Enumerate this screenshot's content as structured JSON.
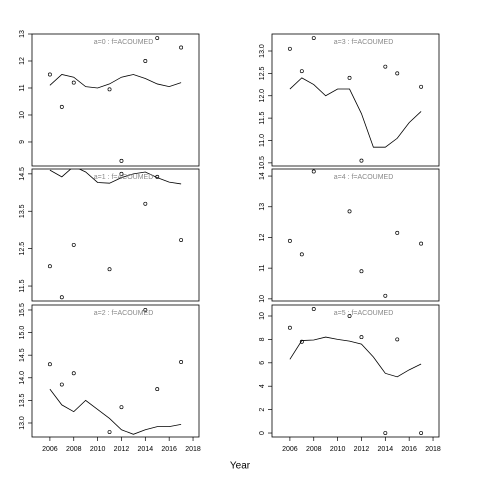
{
  "x_label": "Year",
  "chart_data": [
    {
      "type": "scatter",
      "title": "a=0 : f=ACOUMED",
      "xlim": [
        2004.5,
        2018.5
      ],
      "ylim": [
        8.11,
        13.0
      ],
      "yticks": [
        9,
        10,
        11,
        12,
        13
      ],
      "points": {
        "x": [
          2006,
          2007,
          2008,
          2011,
          2012,
          2014,
          2015,
          2017
        ],
        "values": [
          11.5,
          10.3,
          11.2,
          10.95,
          8.3,
          12.0,
          12.85,
          12.5
        ]
      },
      "line": {
        "x": [
          2006,
          2007,
          2008,
          2009,
          2010,
          2011,
          2012,
          2013,
          2014,
          2015,
          2016,
          2017
        ],
        "values": [
          11.1,
          11.5,
          11.4,
          11.05,
          11.0,
          11.15,
          11.4,
          11.5,
          11.35,
          11.15,
          11.05,
          11.2
        ]
      }
    },
    {
      "type": "scatter",
      "title": "a=1 : f=ACOUMED",
      "xlim": [
        2004.5,
        2018.5
      ],
      "ylim": [
        11.1,
        14.63
      ],
      "yticks": [
        11.5,
        12.5,
        13.5,
        14.5
      ],
      "points": {
        "x": [
          2006,
          2007,
          2008,
          2011,
          2012,
          2014,
          2015,
          2017
        ],
        "values": [
          12.03,
          11.2,
          12.6,
          11.95,
          14.5,
          13.7,
          14.42,
          12.73
        ]
      },
      "line": {
        "x": [
          2006,
          2007,
          2008,
          2009,
          2010,
          2011,
          2012,
          2013,
          2014,
          2015,
          2016,
          2017
        ],
        "values": [
          14.6,
          14.42,
          14.7,
          14.55,
          14.27,
          14.25,
          14.4,
          14.5,
          14.55,
          14.4,
          14.28,
          14.23
        ]
      }
    },
    {
      "type": "scatter",
      "title": "a=2 : f=ACOUMED",
      "xlim": [
        2004.5,
        2018.5
      ],
      "ylim": [
        12.69,
        15.61
      ],
      "yticks": [
        {
          "value": 13,
          "label": "13.0"
        },
        13.5,
        {
          "value": 14,
          "label": "14.0"
        },
        14.5,
        {
          "value": 15,
          "label": "15.0"
        },
        15.5
      ],
      "xticks": [
        2006,
        2008,
        2010,
        2012,
        2014,
        2016,
        2018
      ],
      "points": {
        "x": [
          2006,
          2007,
          2008,
          2011,
          2012,
          2014,
          2015,
          2017
        ],
        "values": [
          14.3,
          13.85,
          14.1,
          12.8,
          13.35,
          15.5,
          13.75,
          14.35
        ]
      },
      "line": {
        "x": [
          2006,
          2007,
          2008,
          2009,
          2010,
          2011,
          2012,
          2013,
          2014,
          2015,
          2016,
          2017
        ],
        "values": [
          13.75,
          13.4,
          13.25,
          13.5,
          13.3,
          13.1,
          12.85,
          12.75,
          12.85,
          12.92,
          12.92,
          12.97
        ]
      }
    },
    {
      "type": "scatter",
      "title": "a=3 : f=ACOUMED",
      "xlim": [
        2004.5,
        2018.5
      ],
      "ylim": [
        10.43,
        13.38
      ],
      "yticks": [
        10.5,
        {
          "value": 11,
          "label": "11.0"
        },
        11.5,
        {
          "value": 12,
          "label": "12.0"
        },
        12.5,
        {
          "value": 13,
          "label": "13.0"
        }
      ],
      "points": {
        "x": [
          2006,
          2007,
          2008,
          2011,
          2012,
          2014,
          2015,
          2017
        ],
        "values": [
          13.05,
          12.55,
          13.29,
          12.4,
          10.55,
          12.65,
          12.5,
          12.2
        ]
      },
      "line": {
        "x": [
          2006,
          2007,
          2008,
          2009,
          2010,
          2011,
          2012,
          2013,
          2014,
          2015,
          2016,
          2017
        ],
        "values": [
          12.15,
          12.4,
          12.25,
          12.0,
          12.15,
          12.15,
          11.6,
          10.85,
          10.85,
          11.05,
          11.4,
          11.65
        ]
      }
    },
    {
      "type": "scatter",
      "title": "a=4 : f=ACOUMED",
      "xlim": [
        2004.5,
        2018.5
      ],
      "ylim": [
        9.93,
        14.23
      ],
      "yticks": [
        10,
        11,
        12,
        13,
        14
      ],
      "points": {
        "x": [
          2006,
          2007,
          2008,
          2011,
          2012,
          2014,
          2015,
          2017
        ],
        "values": [
          11.89,
          11.45,
          14.15,
          12.85,
          10.9,
          10.1,
          12.15,
          11.8
        ]
      }
    },
    {
      "type": "scatter",
      "title": "a=5 : f=ACOUMED",
      "xlim": [
        2004.5,
        2018.5
      ],
      "ylim": [
        -0.34,
        10.94
      ],
      "yticks": [
        0,
        2,
        4,
        6,
        8,
        10
      ],
      "xticks": [
        2006,
        2008,
        2010,
        2012,
        2014,
        2016,
        2018
      ],
      "points": {
        "x": [
          2006,
          2007,
          2008,
          2011,
          2012,
          2014,
          2015,
          2017
        ],
        "values": [
          9.0,
          7.8,
          10.6,
          10.0,
          8.2,
          0.0,
          8.0,
          0.0
        ]
      },
      "line": {
        "x": [
          2006,
          2007,
          2008,
          2009,
          2010,
          2011,
          2012,
          2013,
          2014,
          2015,
          2016,
          2017
        ],
        "values": [
          6.3,
          7.9,
          7.95,
          8.2,
          8.0,
          7.85,
          7.6,
          6.5,
          5.1,
          4.8,
          5.4,
          5.9
        ]
      }
    }
  ]
}
